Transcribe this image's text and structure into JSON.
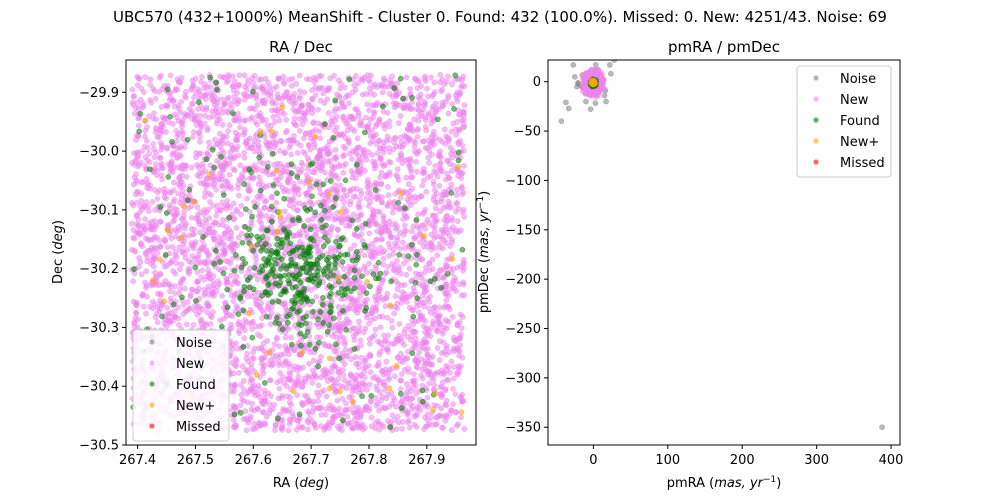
{
  "figure": {
    "suptitle": "UBC570 (432+1000%) MeanShift - Cluster 0. Found: 432 (100.0%). Missed: 0. New: 4251/43. Noise: 69"
  },
  "chart_data": [
    {
      "type": "scatter",
      "title": "RA / Dec",
      "xlabel": "RA (deg)",
      "ylabel": "Dec (deg)",
      "xlim": [
        267.38,
        267.985
      ],
      "ylim": [
        -30.5,
        -29.845
      ],
      "xticks": [
        267.4,
        267.5,
        267.6,
        267.7,
        267.8,
        267.9
      ],
      "xtick_labels": [
        "267.4",
        "267.5",
        "267.6",
        "267.7",
        "267.8",
        "267.9"
      ],
      "yticks": [
        -29.9,
        -30.0,
        -30.1,
        -30.2,
        -30.3,
        -30.4,
        -30.5
      ],
      "ytick_labels": [
        "−29.9",
        "−30.0",
        "−30.1",
        "−30.2",
        "−30.3",
        "−30.4",
        "−30.5"
      ],
      "grid": false,
      "legend_position": "lower-left",
      "series": [
        {
          "name": "Noise",
          "color": "#808080",
          "count": 0,
          "points": []
        },
        {
          "name": "New",
          "color": "#ee82ee",
          "count": 4251,
          "distribution": "uniform",
          "x_range": [
            267.39,
            267.965
          ],
          "y_range": [
            -30.475,
            -29.87
          ]
        },
        {
          "name": "Found",
          "color": "#008000",
          "count": 432,
          "distribution": "cluster_plus_uniform",
          "center": [
            267.68,
            -30.21
          ],
          "spread": [
            0.06,
            0.055
          ],
          "cluster_fraction": 0.7,
          "x_range": [
            267.39,
            267.965
          ],
          "y_range": [
            -30.475,
            -29.87
          ]
        },
        {
          "name": "New+",
          "color": "#ffa500",
          "count": 43,
          "distribution": "uniform",
          "x_range": [
            267.39,
            267.965
          ],
          "y_range": [
            -30.475,
            -29.87
          ]
        },
        {
          "name": "Missed",
          "color": "#ff0000",
          "count": 0,
          "points": []
        }
      ]
    },
    {
      "type": "scatter",
      "title": "pmRA / pmDec",
      "xlabel": "pmRA (mas, yr⁻¹)",
      "ylabel": "pmDec (mas, yr⁻¹)",
      "xlim": [
        -61,
        412
      ],
      "ylim": [
        -368,
        22
      ],
      "xticks": [
        0,
        100,
        200,
        300,
        400
      ],
      "xtick_labels": [
        "0",
        "100",
        "200",
        "300",
        "400"
      ],
      "yticks": [
        0,
        -50,
        -100,
        -150,
        -200,
        -250,
        -300,
        -350
      ],
      "ytick_labels": [
        "0",
        "−50",
        "−100",
        "−150",
        "−200",
        "−250",
        "−300",
        "−350"
      ],
      "grid": false,
      "legend_position": "top-right",
      "series": [
        {
          "name": "Noise",
          "color": "#808080",
          "count": 69,
          "points": [
            [
              388,
              -350
            ],
            [
              -43,
              -40
            ],
            [
              -33,
              -27
            ],
            [
              -37,
              -21
            ],
            [
              -27,
              17
            ],
            [
              -25,
              5
            ],
            [
              28,
              22
            ],
            [
              22,
              17
            ],
            [
              17,
              -20
            ],
            [
              15,
              -14
            ],
            [
              -15,
              -5
            ],
            [
              -10,
              -20
            ]
          ],
          "distribution": "cluster",
          "center": [
            -2,
            -3
          ],
          "spread": [
            10,
            9
          ]
        },
        {
          "name": "New",
          "color": "#ee82ee",
          "count": 4251,
          "distribution": "cluster",
          "center": [
            0,
            -1
          ],
          "spread": [
            4,
            4
          ]
        },
        {
          "name": "Found",
          "color": "#008000",
          "count": 432,
          "distribution": "cluster",
          "center": [
            0,
            -1
          ],
          "spread": [
            1.2,
            1.2
          ]
        },
        {
          "name": "New+",
          "color": "#ffa500",
          "count": 43,
          "distribution": "cluster",
          "center": [
            0,
            -1
          ],
          "spread": [
            1,
            1
          ]
        },
        {
          "name": "Missed",
          "color": "#ff0000",
          "count": 0,
          "points": []
        }
      ]
    }
  ]
}
